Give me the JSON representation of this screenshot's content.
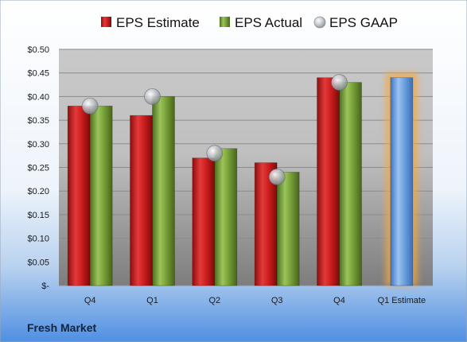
{
  "chart_data": {
    "type": "bar",
    "categories": [
      "Q4",
      "Q1",
      "Q2",
      "Q3",
      "Q4",
      "Q1 Estimate"
    ],
    "series": [
      {
        "name": "EPS Estimate",
        "values": [
          0.38,
          0.36,
          0.27,
          0.26,
          0.44,
          null
        ],
        "color": "#d21f1f"
      },
      {
        "name": "EPS Actual",
        "values": [
          0.38,
          0.4,
          0.29,
          0.24,
          0.43,
          null
        ],
        "color": "#7aa33a"
      },
      {
        "name": "EPS GAAP",
        "values": [
          0.38,
          0.4,
          0.28,
          0.23,
          0.43,
          null
        ],
        "marker": "circle",
        "color": "#b8bcc4"
      }
    ],
    "forecast": {
      "category": "Q1 Estimate",
      "value": 0.44,
      "color": "#6fa3e0",
      "glow_color": "#f5a742"
    },
    "y_ticks": [
      {
        "value": 0.5,
        "label": "$0.50"
      },
      {
        "value": 0.45,
        "label": "$0.45"
      },
      {
        "value": 0.4,
        "label": "$0.40"
      },
      {
        "value": 0.35,
        "label": "$0.35"
      },
      {
        "value": 0.3,
        "label": "$0.30"
      },
      {
        "value": 0.25,
        "label": "$0.25"
      },
      {
        "value": 0.2,
        "label": "$0.20"
      },
      {
        "value": 0.15,
        "label": "$0.15"
      },
      {
        "value": 0.1,
        "label": "$0.10"
      },
      {
        "value": 0.05,
        "label": "$0.05"
      },
      {
        "value": 0.0,
        "label": "$-"
      }
    ],
    "ylim": [
      0,
      0.5
    ],
    "grid": true,
    "legend_position": "top",
    "title": "",
    "xlabel": "",
    "ylabel": ""
  },
  "company": {
    "name": "Fresh Market"
  }
}
